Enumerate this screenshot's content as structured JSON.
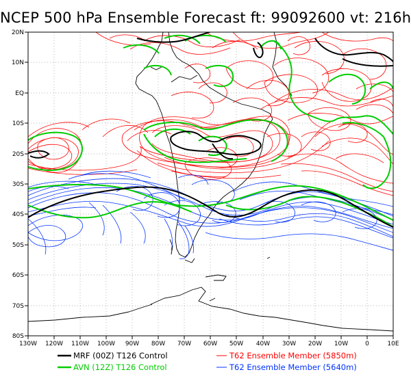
{
  "title": "NCEP 500 hPa Ensemble Forecast  ft: 99092600 vt: 216h",
  "map": {
    "lat_labels": [
      "20N",
      "10N",
      "EQ",
      "10S",
      "20S",
      "30S",
      "40S",
      "50S",
      "60S",
      "70S",
      "80S"
    ],
    "lon_labels": [
      "130W",
      "120W",
      "110W",
      "100W",
      "90W",
      "80W",
      "70W",
      "60W",
      "50W",
      "40W",
      "30W",
      "20W",
      "10W",
      "0",
      "10E"
    ]
  },
  "legend": {
    "mrf": "MRF (00Z) T126 Control",
    "avn": "AVN (12Z) T126 Control",
    "red": "T62 Ensemble Member (5850m)",
    "blue": "T62 Ensemble Member (5640m)"
  },
  "colors": {
    "red": "#ff0000",
    "blue": "#0033ff",
    "green": "#00cc00",
    "black": "#000000"
  }
}
